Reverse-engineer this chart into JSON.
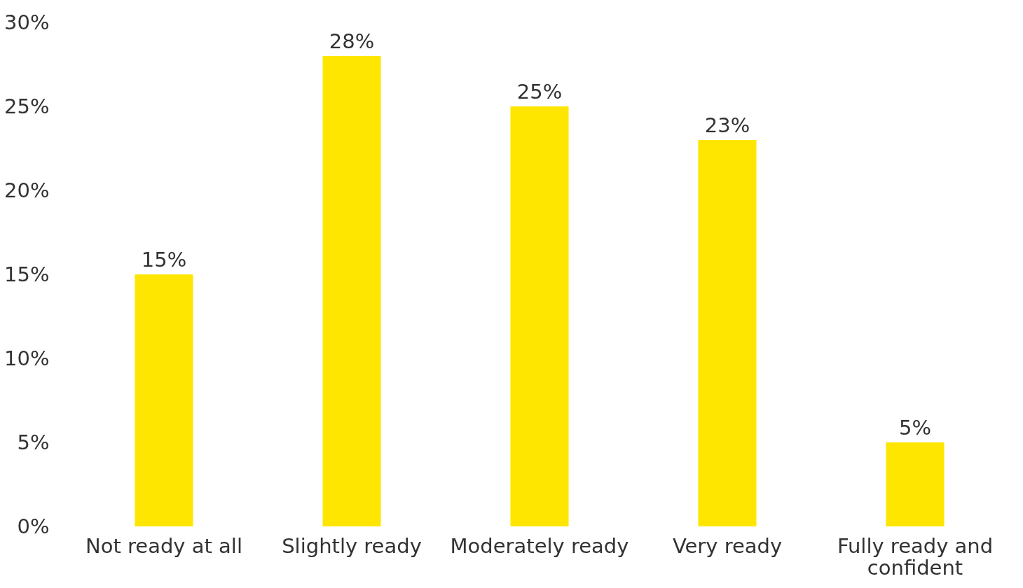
{
  "chart_data": {
    "type": "bar",
    "categories": [
      "Not ready at all",
      "Slightly ready",
      "Moderately ready",
      "Very ready",
      "Fully ready and confident"
    ],
    "values": [
      15,
      28,
      25,
      23,
      5
    ],
    "value_labels": [
      "15%",
      "28%",
      "25%",
      "23%",
      "5%"
    ],
    "color": "#ffe600",
    "ylim": [
      0,
      30
    ],
    "yticks": [
      {
        "value": 0,
        "label": "0%"
      },
      {
        "value": 5,
        "label": "5%"
      },
      {
        "value": 10,
        "label": "10%"
      },
      {
        "value": 15,
        "label": "15%"
      },
      {
        "value": 20,
        "label": "20%"
      },
      {
        "value": 25,
        "label": "25%"
      },
      {
        "value": 30,
        "label": "30%"
      }
    ],
    "grid": false
  }
}
